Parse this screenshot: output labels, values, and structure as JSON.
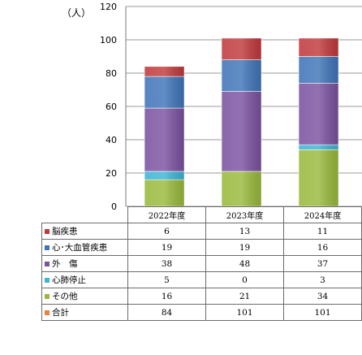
{
  "chart_data": {
    "type": "bar",
    "stacked": true,
    "unit_label": "（人）",
    "ylim": [
      0,
      120
    ],
    "y_ticks": [
      0,
      20,
      40,
      60,
      80,
      100,
      120
    ],
    "grid": true,
    "categories": [
      "2022年度",
      "2023年度",
      "2024年度"
    ],
    "series": [
      {
        "name": "その他",
        "color": "#99b93c",
        "values": [
          16,
          21,
          34
        ]
      },
      {
        "name": "心肺停止",
        "color": "#3cb4d4",
        "values": [
          5,
          0,
          3
        ]
      },
      {
        "name": "外　傷",
        "color": "#7a52a0",
        "values": [
          38,
          48,
          37
        ]
      },
      {
        "name": "心･大血管疾患",
        "color": "#3f74b8",
        "values": [
          19,
          19,
          16
        ]
      },
      {
        "name": "脳疾患",
        "color": "#c0393c",
        "values": [
          6,
          13,
          11
        ]
      }
    ],
    "table_rows": [
      {
        "name": "脳疾患",
        "color": "#c0393c",
        "values": [
          "6",
          "13",
          "11"
        ]
      },
      {
        "name": "心･大血管疾患",
        "color": "#3f74b8",
        "values": [
          "19",
          "19",
          "16"
        ]
      },
      {
        "name": "外　傷",
        "color": "#7a52a0",
        "values": [
          "38",
          "48",
          "37"
        ]
      },
      {
        "name": "心肺停止",
        "color": "#3cb4d4",
        "values": [
          "5",
          "0",
          "3"
        ]
      },
      {
        "name": "その他",
        "color": "#99b93c",
        "values": [
          "16",
          "21",
          "34"
        ]
      },
      {
        "name": "合計",
        "color": "#e8813a",
        "values": [
          "84",
          "101",
          "101"
        ]
      }
    ]
  }
}
